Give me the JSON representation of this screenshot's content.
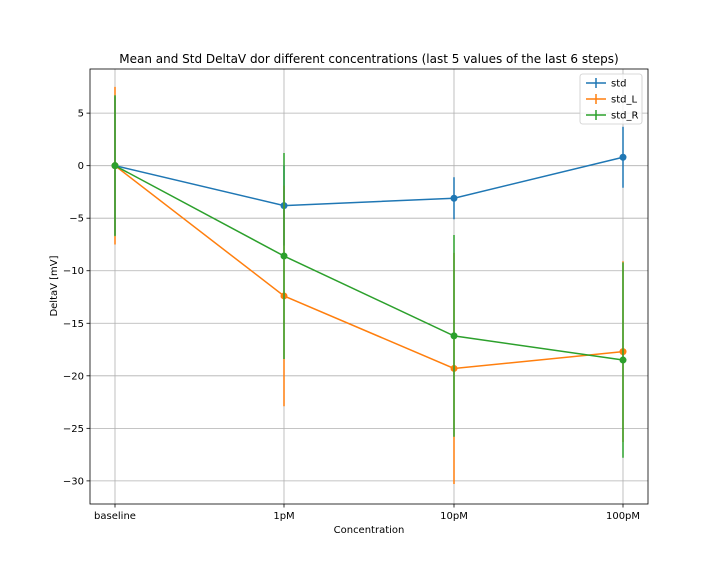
{
  "chart_data": {
    "type": "line",
    "title": "Mean and Std DeltaV dor different concentrations (last 5 values of the last 6 steps)",
    "xlabel": "Concentration",
    "ylabel": "DeltaV [mV]",
    "categories": [
      "baseline",
      "1pM",
      "10pM",
      "100pM"
    ],
    "ylim": [
      -32.2,
      9.2
    ],
    "yticks": [
      5,
      0,
      -5,
      -10,
      -15,
      -20,
      -25,
      -30
    ],
    "grid": true,
    "legend_position": "top-right",
    "series": [
      {
        "name": "std",
        "color": "#1f77b4",
        "values": [
          0,
          -3.8,
          -3.1,
          0.8
        ],
        "errors": [
          6.6,
          3.8,
          2.0,
          2.9
        ]
      },
      {
        "name": "std_L",
        "color": "#ff7f0e",
        "values": [
          0,
          -12.4,
          -19.3,
          -17.7
        ],
        "errors": [
          7.5,
          10.5,
          11.0,
          8.6
        ]
      },
      {
        "name": "std_R",
        "color": "#2ca02c",
        "values": [
          0,
          -8.6,
          -16.2,
          -18.5
        ],
        "errors": [
          6.7,
          9.8,
          9.6,
          9.3
        ]
      }
    ]
  }
}
